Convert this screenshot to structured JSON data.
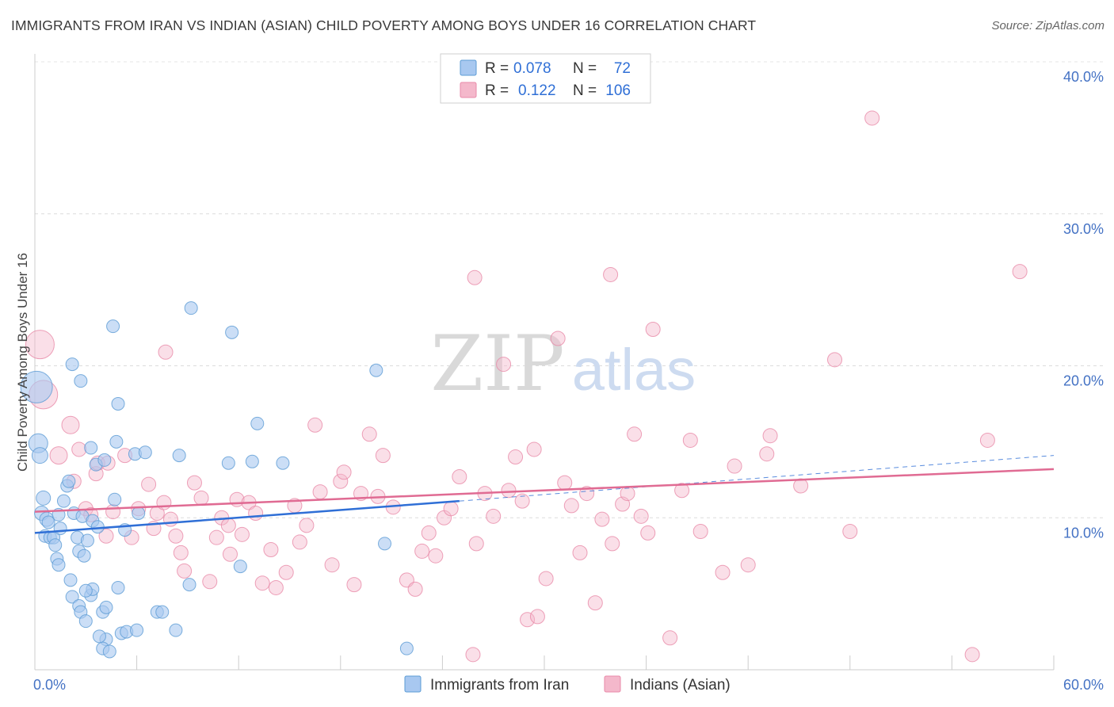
{
  "title": "IMMIGRANTS FROM IRAN VS INDIAN (ASIAN) CHILD POVERTY AMONG BOYS UNDER 16 CORRELATION CHART",
  "source": "Source: ZipAtlas.com",
  "watermark": {
    "zip": "ZIP",
    "atlas": "atlas"
  },
  "legend": {
    "rows": [
      {
        "r_label": "R =",
        "r_value": "0.078",
        "n_label": "N =",
        "n_value": "72",
        "color": "#a8c8f0"
      },
      {
        "r_label": "R =",
        "r_value": "0.122",
        "n_label": "N =",
        "n_value": "106",
        "color": "#f4b8cb"
      }
    ]
  },
  "bottom_legend": [
    {
      "label": "Immigrants from Iran",
      "color": "#a8c8f0"
    },
    {
      "label": "Indians (Asian)",
      "color": "#f4b8cb"
    }
  ],
  "chart_data": {
    "type": "scatter",
    "title": "IMMIGRANTS FROM IRAN VS INDIAN (ASIAN) CHILD POVERTY AMONG BOYS UNDER 16 CORRELATION CHART",
    "xlabel": "",
    "ylabel": "Child Poverty Among Boys Under 16",
    "xlim": [
      0,
      60
    ],
    "ylim": [
      0,
      40
    ],
    "x_tick_labels": [
      "0.0%",
      "60.0%"
    ],
    "y_ticks": [
      10,
      20,
      30,
      40
    ],
    "y_tick_labels": [
      "10.0%",
      "20.0%",
      "30.0%",
      "40.0%"
    ],
    "grid": true,
    "legend_position": "top-center",
    "colors": {
      "iran": "#5b9bd5",
      "iran_fill": "#a8c8f0",
      "iran_line": "#2f6fd6",
      "indian": "#e88aa8",
      "indian_fill": "#f4b8cb",
      "indian_line": "#e06b93"
    },
    "series": [
      {
        "name": "Immigrants from Iran",
        "trend": {
          "x0": 0,
          "y0": 9.0,
          "x1": 25,
          "y1": 11.1,
          "dashed_to_x": 60,
          "dashed_to_y": 14.1
        },
        "points": [
          [
            0.1,
            18.6,
            20
          ],
          [
            0.2,
            14.9,
            12
          ],
          [
            0.3,
            14.1,
            10
          ],
          [
            0.5,
            11.3,
            9
          ],
          [
            0.4,
            10.3,
            9
          ],
          [
            0.7,
            9.9,
            9
          ],
          [
            0.8,
            9.7,
            8
          ],
          [
            0.6,
            8.8,
            8
          ],
          [
            0.9,
            8.7,
            8
          ],
          [
            1.1,
            8.7,
            8
          ],
          [
            1.2,
            8.2,
            8
          ],
          [
            1.4,
            10.2,
            8
          ],
          [
            1.5,
            9.3,
            8
          ],
          [
            1.3,
            7.3,
            8
          ],
          [
            1.7,
            11.1,
            8
          ],
          [
            1.9,
            12.1,
            8
          ],
          [
            2.0,
            12.4,
            8
          ],
          [
            1.4,
            6.9,
            8
          ],
          [
            2.2,
            20.1,
            8
          ],
          [
            2.3,
            10.3,
            8
          ],
          [
            2.5,
            8.7,
            8
          ],
          [
            2.7,
            19.0,
            8
          ],
          [
            2.8,
            10.1,
            8
          ],
          [
            2.6,
            7.8,
            8
          ],
          [
            2.9,
            7.5,
            8
          ],
          [
            3.1,
            8.5,
            8
          ],
          [
            3.3,
            14.6,
            8
          ],
          [
            3.4,
            9.8,
            8
          ],
          [
            3.7,
            9.4,
            8
          ],
          [
            3.6,
            13.5,
            8
          ],
          [
            2.1,
            5.9,
            8
          ],
          [
            2.2,
            4.8,
            8
          ],
          [
            2.6,
            4.2,
            8
          ],
          [
            3.3,
            4.9,
            8
          ],
          [
            3.4,
            5.3,
            8
          ],
          [
            3.0,
            5.2,
            8
          ],
          [
            2.7,
            3.8,
            8
          ],
          [
            3.0,
            3.2,
            8
          ],
          [
            4.0,
            3.8,
            8
          ],
          [
            4.2,
            4.1,
            8
          ],
          [
            4.1,
            13.8,
            8
          ],
          [
            4.9,
            5.4,
            8
          ],
          [
            5.3,
            9.2,
            8
          ],
          [
            4.6,
            22.6,
            8
          ],
          [
            4.9,
            17.5,
            8
          ],
          [
            4.8,
            15.0,
            8
          ],
          [
            4.2,
            2.0,
            8
          ],
          [
            4.0,
            1.4,
            8
          ],
          [
            5.1,
            2.4,
            8
          ],
          [
            3.8,
            2.2,
            8
          ],
          [
            4.4,
            1.2,
            8
          ],
          [
            4.7,
            11.2,
            8
          ],
          [
            5.4,
            2.5,
            8
          ],
          [
            6.0,
            2.6,
            8
          ],
          [
            6.1,
            10.3,
            8
          ],
          [
            5.9,
            14.2,
            8
          ],
          [
            6.5,
            14.3,
            8
          ],
          [
            7.2,
            3.8,
            8
          ],
          [
            7.5,
            3.8,
            8
          ],
          [
            8.3,
            2.6,
            8
          ],
          [
            8.5,
            14.1,
            8
          ],
          [
            9.1,
            5.6,
            8
          ],
          [
            11.4,
            13.6,
            8
          ],
          [
            12.1,
            6.8,
            8
          ],
          [
            12.8,
            13.7,
            8
          ],
          [
            13.1,
            16.2,
            8
          ],
          [
            14.6,
            13.6,
            8
          ],
          [
            9.2,
            23.8,
            8
          ],
          [
            11.6,
            22.2,
            8
          ],
          [
            20.1,
            19.7,
            8
          ],
          [
            20.6,
            8.3,
            8
          ],
          [
            21.9,
            1.4,
            8
          ]
        ]
      },
      {
        "name": "Indians (Asian)",
        "trend": {
          "x0": 0,
          "y0": 10.4,
          "x1": 60,
          "y1": 13.2
        },
        "points": [
          [
            0.3,
            21.4,
            18
          ],
          [
            0.5,
            18.1,
            18
          ],
          [
            2.1,
            16.1,
            11
          ],
          [
            1.4,
            14.1,
            11
          ],
          [
            2.6,
            14.5,
            9
          ],
          [
            2.3,
            12.4,
            9
          ],
          [
            3.0,
            10.6,
            9
          ],
          [
            3.3,
            10.2,
            9
          ],
          [
            3.6,
            12.9,
            9
          ],
          [
            3.7,
            13.6,
            9
          ],
          [
            4.2,
            8.8,
            9
          ],
          [
            4.6,
            10.4,
            9
          ],
          [
            4.3,
            13.6,
            9
          ],
          [
            5.3,
            14.1,
            9
          ],
          [
            5.7,
            8.7,
            9
          ],
          [
            6.1,
            10.6,
            9
          ],
          [
            6.7,
            12.2,
            9
          ],
          [
            7.2,
            10.3,
            9
          ],
          [
            7.0,
            9.3,
            9
          ],
          [
            7.6,
            11.0,
            9
          ],
          [
            8.0,
            9.9,
            9
          ],
          [
            8.3,
            8.8,
            9
          ],
          [
            8.6,
            7.7,
            9
          ],
          [
            8.8,
            6.5,
            9
          ],
          [
            9.4,
            12.3,
            9
          ],
          [
            9.8,
            11.3,
            9
          ],
          [
            10.3,
            5.8,
            9
          ],
          [
            10.7,
            8.7,
            9
          ],
          [
            11.0,
            10.0,
            9
          ],
          [
            11.4,
            9.5,
            9
          ],
          [
            11.5,
            7.6,
            9
          ],
          [
            11.9,
            11.2,
            9
          ],
          [
            12.2,
            8.9,
            9
          ],
          [
            12.6,
            11.0,
            9
          ],
          [
            13.0,
            10.3,
            9
          ],
          [
            13.4,
            5.7,
            9
          ],
          [
            13.9,
            7.9,
            9
          ],
          [
            14.2,
            5.4,
            9
          ],
          [
            14.8,
            6.4,
            9
          ],
          [
            15.3,
            10.8,
            9
          ],
          [
            15.6,
            8.4,
            9
          ],
          [
            16.0,
            9.5,
            9
          ],
          [
            16.5,
            16.1,
            9
          ],
          [
            16.8,
            11.7,
            9
          ],
          [
            17.5,
            6.9,
            9
          ],
          [
            18.0,
            12.4,
            9
          ],
          [
            18.2,
            13.0,
            9
          ],
          [
            18.8,
            5.6,
            9
          ],
          [
            19.2,
            11.6,
            9
          ],
          [
            19.7,
            15.5,
            9
          ],
          [
            20.2,
            11.4,
            9
          ],
          [
            20.5,
            14.1,
            9
          ],
          [
            21.1,
            10.7,
            9
          ],
          [
            21.9,
            5.9,
            9
          ],
          [
            22.4,
            5.3,
            9
          ],
          [
            22.8,
            7.8,
            9
          ],
          [
            23.2,
            9.0,
            9
          ],
          [
            23.6,
            7.5,
            9
          ],
          [
            24.1,
            10.0,
            9
          ],
          [
            24.5,
            10.6,
            9
          ],
          [
            25.0,
            12.7,
            9
          ],
          [
            25.8,
            1.0,
            9
          ],
          [
            26.0,
            8.3,
            9
          ],
          [
            26.5,
            11.6,
            9
          ],
          [
            27.0,
            10.1,
            9
          ],
          [
            27.6,
            20.1,
            9
          ],
          [
            27.9,
            11.8,
            9
          ],
          [
            28.3,
            14.0,
            9
          ],
          [
            28.7,
            11.1,
            9
          ],
          [
            29.0,
            3.3,
            9
          ],
          [
            29.4,
            14.5,
            9
          ],
          [
            29.6,
            3.5,
            9
          ],
          [
            30.1,
            6.0,
            9
          ],
          [
            30.8,
            21.8,
            9
          ],
          [
            31.2,
            12.3,
            9
          ],
          [
            31.6,
            10.8,
            9
          ],
          [
            32.1,
            7.7,
            9
          ],
          [
            32.5,
            11.6,
            9
          ],
          [
            33.0,
            4.4,
            9
          ],
          [
            33.4,
            9.9,
            9
          ],
          [
            34.0,
            8.3,
            9
          ],
          [
            34.6,
            10.9,
            9
          ],
          [
            34.9,
            11.6,
            9
          ],
          [
            35.3,
            15.5,
            9
          ],
          [
            35.7,
            10.1,
            9
          ],
          [
            36.1,
            9.0,
            9
          ],
          [
            36.4,
            22.4,
            9
          ],
          [
            37.4,
            2.1,
            9
          ],
          [
            38.1,
            11.8,
            9
          ],
          [
            38.6,
            15.1,
            9
          ],
          [
            39.2,
            9.1,
            9
          ],
          [
            40.5,
            6.4,
            9
          ],
          [
            41.2,
            13.4,
            9
          ],
          [
            42.0,
            6.9,
            9
          ],
          [
            43.1,
            14.2,
            9
          ],
          [
            43.3,
            15.4,
            9
          ],
          [
            45.1,
            12.1,
            9
          ],
          [
            47.1,
            20.4,
            9
          ],
          [
            48.0,
            9.1,
            9
          ],
          [
            49.3,
            36.3,
            9
          ],
          [
            55.2,
            1.0,
            9
          ],
          [
            56.1,
            15.1,
            9
          ],
          [
            58.0,
            26.2,
            9
          ],
          [
            25.9,
            25.8,
            9
          ],
          [
            33.9,
            26.0,
            9
          ],
          [
            7.7,
            20.9,
            9
          ]
        ]
      }
    ]
  }
}
